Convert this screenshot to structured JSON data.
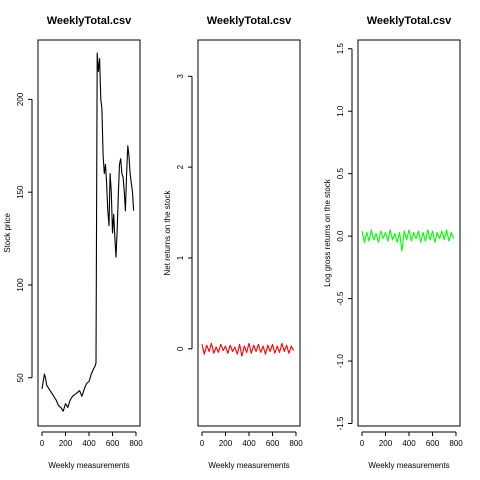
{
  "chart_data": [
    {
      "type": "line",
      "title": "WeeklyTotal.csv",
      "xlabel": "Weekly measurements",
      "ylabel": "Stock price",
      "xlim": [
        0,
        800
      ],
      "ylim": [
        24,
        232
      ],
      "xticks": [
        0,
        200,
        400,
        600,
        800
      ],
      "yticks": [
        50,
        100,
        150,
        200
      ],
      "grid": false,
      "series": [
        {
          "color": "#000000",
          "x": [
            0,
            10,
            20,
            30,
            40,
            60,
            80,
            100,
            120,
            140,
            160,
            180,
            200,
            220,
            240,
            260,
            280,
            300,
            320,
            340,
            360,
            380,
            400,
            420,
            440,
            450,
            460,
            470,
            480,
            490,
            500,
            510,
            520,
            530,
            540,
            550,
            560,
            570,
            580,
            590,
            600,
            610,
            620,
            630,
            640,
            650,
            660,
            670,
            680,
            690,
            700,
            710,
            720,
            730,
            740,
            750,
            760,
            770,
            780
          ],
          "values": [
            44,
            48,
            52,
            50,
            46,
            44,
            42,
            40,
            38,
            35,
            34,
            32,
            36,
            34,
            38,
            40,
            41,
            42,
            43,
            40,
            44,
            47,
            48,
            52,
            55,
            56,
            58,
            225,
            215,
            222,
            200,
            195,
            170,
            160,
            165,
            155,
            140,
            132,
            160,
            150,
            128,
            138,
            125,
            115,
            130,
            150,
            165,
            168,
            160,
            158,
            150,
            140,
            160,
            175,
            170,
            160,
            155,
            150,
            140
          ]
        }
      ]
    },
    {
      "type": "line",
      "title": "WeeklyTotal.csv",
      "xlabel": "Weekly measurements",
      "ylabel": "Net returns on the stock",
      "xlim": [
        0,
        800
      ],
      "ylim": [
        -0.85,
        3.4
      ],
      "xticks": [
        0,
        200,
        400,
        600,
        800
      ],
      "yticks": [
        0,
        1,
        2,
        3
      ],
      "grid": false,
      "series": [
        {
          "color": "#ff0000",
          "x": [
            0,
            20,
            40,
            60,
            80,
            100,
            120,
            140,
            160,
            180,
            200,
            220,
            240,
            260,
            280,
            300,
            320,
            340,
            360,
            380,
            400,
            420,
            440,
            460,
            480,
            500,
            520,
            540,
            560,
            580,
            600,
            620,
            640,
            660,
            680,
            700,
            720,
            740,
            760,
            780
          ],
          "values": [
            0.05,
            -0.06,
            0.04,
            -0.03,
            0.06,
            -0.05,
            0.02,
            -0.04,
            0.05,
            -0.02,
            0.03,
            -0.05,
            0.04,
            -0.03,
            0.02,
            -0.06,
            0.05,
            -0.08,
            0.03,
            -0.04,
            0.06,
            -0.05,
            0.04,
            -0.03,
            0.05,
            -0.04,
            0.03,
            -0.06,
            0.04,
            -0.03,
            0.05,
            -0.05,
            0.03,
            -0.04,
            0.06,
            -0.03,
            0.04,
            -0.05,
            0.03,
            -0.02
          ]
        }
      ]
    },
    {
      "type": "line",
      "title": "WeeklyTotal.csv",
      "xlabel": "Weekly measurements",
      "ylabel": "Log gross returns on the stock",
      "xlim": [
        0,
        800
      ],
      "ylim": [
        -1.52,
        1.57
      ],
      "xticks": [
        0,
        200,
        400,
        600,
        800
      ],
      "yticks": [
        -1.5,
        -1.0,
        -0.5,
        0.0,
        0.5,
        1.0,
        1.5
      ],
      "grid": false,
      "series": [
        {
          "color": "#00ff00",
          "x": [
            0,
            20,
            40,
            60,
            80,
            100,
            120,
            140,
            160,
            180,
            200,
            220,
            240,
            260,
            280,
            300,
            320,
            340,
            360,
            380,
            400,
            420,
            440,
            460,
            480,
            500,
            520,
            540,
            560,
            580,
            600,
            620,
            640,
            660,
            680,
            700,
            720,
            740,
            760,
            780
          ],
          "values": [
            0.04,
            -0.05,
            0.03,
            -0.04,
            0.05,
            -0.03,
            0.02,
            -0.05,
            0.04,
            -0.02,
            0.03,
            -0.04,
            0.05,
            -0.03,
            0.02,
            -0.05,
            0.03,
            -0.12,
            0.04,
            -0.03,
            0.05,
            -0.04,
            0.03,
            -0.02,
            0.04,
            -0.05,
            0.03,
            -0.04,
            0.05,
            -0.03,
            0.04,
            -0.05,
            0.03,
            -0.02,
            0.04,
            -0.03,
            0.05,
            -0.04,
            0.03,
            -0.02
          ]
        }
      ]
    }
  ]
}
